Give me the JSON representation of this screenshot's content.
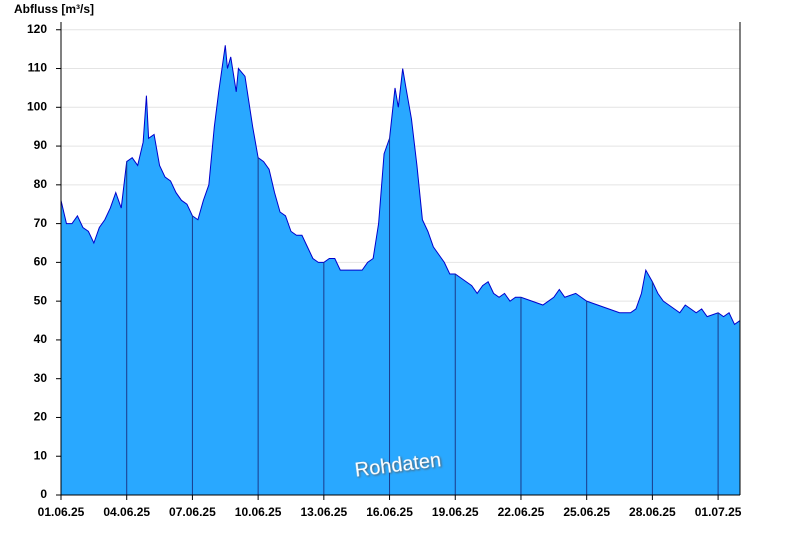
{
  "chart_data": {
    "type": "area",
    "y_label": "Abfluss [m³/s]",
    "annotation": "Rohdaten",
    "x": [
      0,
      0.25,
      0.5,
      0.75,
      1,
      1.25,
      1.5,
      1.75,
      2,
      2.25,
      2.5,
      2.75,
      3,
      3.25,
      3.5,
      3.75,
      3.9,
      4,
      4.25,
      4.5,
      4.75,
      5,
      5.25,
      5.5,
      5.75,
      6,
      6.25,
      6.5,
      6.75,
      7,
      7.2,
      7.5,
      7.6,
      7.75,
      8,
      8.1,
      8.4,
      8.75,
      9,
      9.25,
      9.5,
      9.75,
      10,
      10.25,
      10.5,
      10.75,
      11,
      11.25,
      11.5,
      11.75,
      12,
      12.25,
      12.5,
      12.75,
      13,
      13.25,
      13.5,
      13.75,
      14,
      14.25,
      14.5,
      14.75,
      15,
      15.25,
      15.4,
      15.6,
      15.75,
      16,
      16.25,
      16.5,
      16.75,
      17,
      17.25,
      17.5,
      17.75,
      18,
      18.25,
      18.5,
      18.75,
      19,
      19.25,
      19.5,
      19.75,
      20,
      20.25,
      20.5,
      20.75,
      21,
      21.5,
      22,
      22.5,
      22.75,
      23,
      23.5,
      24,
      24.5,
      25,
      25.5,
      26,
      26.25,
      26.5,
      26.7,
      27,
      27.25,
      27.5,
      27.75,
      28,
      28.25,
      28.5,
      28.75,
      29,
      29.25,
      29.5,
      30,
      30.25,
      30.5,
      30.75,
      31
    ],
    "values": [
      76,
      70,
      70,
      72,
      69,
      68,
      65,
      69,
      71,
      74,
      78,
      74,
      86,
      87,
      85,
      91,
      103,
      92,
      93,
      85,
      82,
      81,
      78,
      76,
      75,
      72,
      71,
      76,
      80,
      95,
      104,
      116,
      110,
      113,
      104,
      110,
      108,
      95,
      87,
      86,
      84,
      78,
      73,
      72,
      68,
      67,
      67,
      64,
      61,
      60,
      60,
      61,
      61,
      58,
      58,
      58,
      58,
      58,
      60,
      61,
      70,
      88,
      92,
      105,
      100,
      110,
      105,
      97,
      85,
      71,
      68,
      64,
      62,
      60,
      57,
      57,
      56,
      55,
      54,
      52,
      54,
      55,
      52,
      51,
      52,
      50,
      51,
      51,
      50,
      49,
      51,
      53,
      51,
      52,
      50,
      49,
      48,
      47,
      47,
      48,
      52,
      58,
      55,
      52,
      50,
      49,
      48,
      47,
      49,
      48,
      47,
      48,
      46,
      47,
      46,
      47,
      44,
      45
    ],
    "color": "#29a8ff",
    "line_color": "#0000cc",
    "xlim": [
      0,
      31
    ],
    "xticks": [
      {
        "value": 0,
        "label": "01.06.25"
      },
      {
        "value": 3,
        "label": "04.06.25"
      },
      {
        "value": 6,
        "label": "07.06.25"
      },
      {
        "value": 9,
        "label": "10.06.25"
      },
      {
        "value": 12,
        "label": "13.06.25"
      },
      {
        "value": 15,
        "label": "16.06.25"
      },
      {
        "value": 18,
        "label": "19.06.25"
      },
      {
        "value": 21,
        "label": "22.06.25"
      },
      {
        "value": 24,
        "label": "25.06.25"
      },
      {
        "value": 27,
        "label": "28.06.25"
      },
      {
        "value": 30,
        "label": "01.07.25"
      }
    ],
    "ylim": [
      0,
      122
    ],
    "yticks": [
      0,
      10,
      20,
      30,
      40,
      50,
      60,
      70,
      80,
      90,
      100,
      110,
      120
    ],
    "grid": true
  }
}
